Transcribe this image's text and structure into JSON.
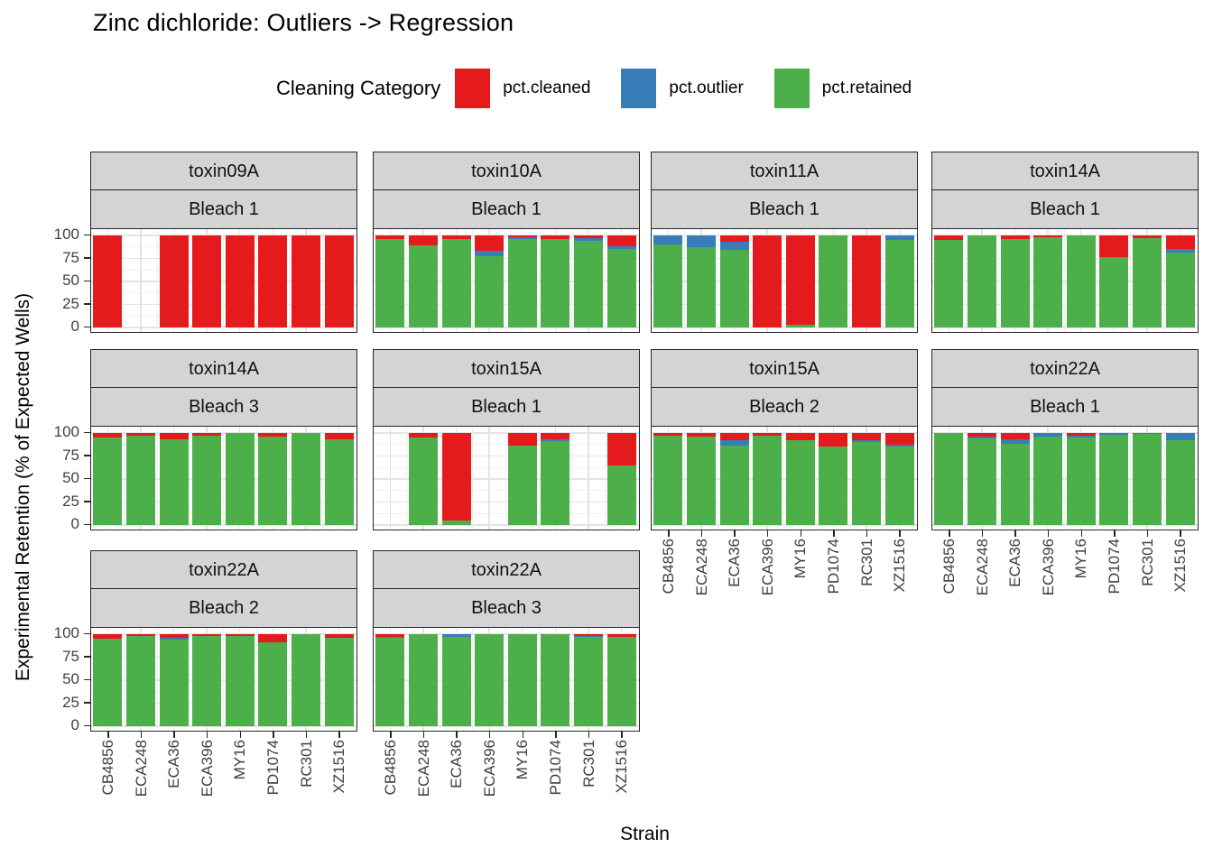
{
  "title": "Zinc dichloride: Outliers -> Regression",
  "legend": {
    "title": "Cleaning Category",
    "items": [
      {
        "label": "pct.cleaned",
        "key": "cleaned",
        "color": "#E41A1C"
      },
      {
        "label": "pct.outlier",
        "key": "outlier",
        "color": "#377EB8"
      },
      {
        "label": "pct.retained",
        "key": "retained",
        "color": "#4DAF4A"
      }
    ]
  },
  "axes": {
    "y_title": "Experimental Retention (% of Expected Wells)",
    "x_title": "Strain",
    "y_ticks": [
      100,
      75,
      50,
      25,
      0
    ],
    "strains": [
      "CB4856",
      "ECA248",
      "ECA36",
      "ECA396",
      "MY16",
      "PD1074",
      "RC301",
      "XZ1516"
    ]
  },
  "colors": {
    "cleaned": "#E41A1C",
    "outlier": "#377EB8",
    "retained": "#4DAF4A",
    "strip_bg": "#D4D4D4",
    "panel_border": "#262626",
    "grid_major": "#E3E3E3",
    "grid_minor": "#F0F0F0",
    "tick_text": "#404040"
  },
  "chart_data": {
    "type": "bar",
    "stacked": true,
    "ylim": [
      0,
      100
    ],
    "grid": true,
    "legend_position": "top",
    "categories": [
      "CB4856",
      "ECA248",
      "ECA36",
      "ECA396",
      "MY16",
      "PD1074",
      "RC301",
      "XZ1516"
    ],
    "stack_order_bottom_to_top": [
      "retained",
      "outlier",
      "cleaned"
    ],
    "facets": [
      {
        "toxin": "toxin09A",
        "bleach": "Bleach 1",
        "show_x_labels": false,
        "bars": [
          {
            "cleaned": 100,
            "outlier": 0,
            "retained": 0
          },
          null,
          {
            "cleaned": 100,
            "outlier": 0,
            "retained": 0
          },
          {
            "cleaned": 100,
            "outlier": 0,
            "retained": 0
          },
          {
            "cleaned": 100,
            "outlier": 0,
            "retained": 0
          },
          {
            "cleaned": 100,
            "outlier": 0,
            "retained": 0
          },
          {
            "cleaned": 100,
            "outlier": 0,
            "retained": 0
          },
          {
            "cleaned": 100,
            "outlier": 0,
            "retained": 0
          }
        ]
      },
      {
        "toxin": "toxin10A",
        "bleach": "Bleach 1",
        "show_x_labels": false,
        "bars": [
          {
            "cleaned": 4,
            "outlier": 0,
            "retained": 96
          },
          {
            "cleaned": 11,
            "outlier": 0,
            "retained": 89
          },
          {
            "cleaned": 4,
            "outlier": 0,
            "retained": 96
          },
          {
            "cleaned": 17,
            "outlier": 6,
            "retained": 77
          },
          {
            "cleaned": 2,
            "outlier": 2,
            "retained": 96
          },
          {
            "cleaned": 4,
            "outlier": 0,
            "retained": 96
          },
          {
            "cleaned": 3,
            "outlier": 3,
            "retained": 94
          },
          {
            "cleaned": 12,
            "outlier": 3,
            "retained": 85
          }
        ]
      },
      {
        "toxin": "toxin11A",
        "bleach": "Bleach 1",
        "show_x_labels": false,
        "bars": [
          {
            "cleaned": 0,
            "outlier": 10,
            "retained": 90
          },
          {
            "cleaned": 0,
            "outlier": 13,
            "retained": 87
          },
          {
            "cleaned": 7,
            "outlier": 9,
            "retained": 84
          },
          {
            "cleaned": 100,
            "outlier": 0,
            "retained": 0
          },
          {
            "cleaned": 97,
            "outlier": 0,
            "retained": 3
          },
          {
            "cleaned": 0,
            "outlier": 0,
            "retained": 100
          },
          {
            "cleaned": 100,
            "outlier": 0,
            "retained": 0
          },
          {
            "cleaned": 0,
            "outlier": 5,
            "retained": 95
          }
        ]
      },
      {
        "toxin": "toxin14A",
        "bleach": "Bleach 1",
        "show_x_labels": false,
        "bars": [
          {
            "cleaned": 5,
            "outlier": 0,
            "retained": 95
          },
          {
            "cleaned": 0,
            "outlier": 0,
            "retained": 100
          },
          {
            "cleaned": 4,
            "outlier": 0,
            "retained": 96
          },
          {
            "cleaned": 2,
            "outlier": 0,
            "retained": 98
          },
          {
            "cleaned": 0,
            "outlier": 0,
            "retained": 100
          },
          {
            "cleaned": 24,
            "outlier": 0,
            "retained": 76
          },
          {
            "cleaned": 3,
            "outlier": 0,
            "retained": 97
          },
          {
            "cleaned": 15,
            "outlier": 4,
            "retained": 81
          }
        ]
      },
      {
        "toxin": "toxin14A",
        "bleach": "Bleach 3",
        "show_x_labels": false,
        "bars": [
          {
            "cleaned": 5,
            "outlier": 0,
            "retained": 95
          },
          {
            "cleaned": 3,
            "outlier": 0,
            "retained": 97
          },
          {
            "cleaned": 7,
            "outlier": 0,
            "retained": 93
          },
          {
            "cleaned": 3,
            "outlier": 0,
            "retained": 97
          },
          {
            "cleaned": 0,
            "outlier": 0,
            "retained": 100
          },
          {
            "cleaned": 4,
            "outlier": 0,
            "retained": 96
          },
          {
            "cleaned": 0,
            "outlier": 0,
            "retained": 100
          },
          {
            "cleaned": 7,
            "outlier": 0,
            "retained": 93
          }
        ]
      },
      {
        "toxin": "toxin15A",
        "bleach": "Bleach 1",
        "show_x_labels": false,
        "bars": [
          null,
          {
            "cleaned": 5,
            "outlier": 0,
            "retained": 95
          },
          {
            "cleaned": 95,
            "outlier": 0,
            "retained": 5
          },
          null,
          {
            "cleaned": 14,
            "outlier": 0,
            "retained": 86
          },
          {
            "cleaned": 7,
            "outlier": 2,
            "retained": 91
          },
          null,
          {
            "cleaned": 35,
            "outlier": 0,
            "retained": 65
          }
        ]
      },
      {
        "toxin": "toxin15A",
        "bleach": "Bleach 2",
        "show_x_labels": true,
        "bars": [
          {
            "cleaned": 3,
            "outlier": 0,
            "retained": 97
          },
          {
            "cleaned": 4,
            "outlier": 0,
            "retained": 96
          },
          {
            "cleaned": 8,
            "outlier": 6,
            "retained": 86
          },
          {
            "cleaned": 3,
            "outlier": 0,
            "retained": 97
          },
          {
            "cleaned": 8,
            "outlier": 0,
            "retained": 92
          },
          {
            "cleaned": 15,
            "outlier": 0,
            "retained": 85
          },
          {
            "cleaned": 8,
            "outlier": 2,
            "retained": 90
          },
          {
            "cleaned": 13,
            "outlier": 2,
            "retained": 85
          }
        ]
      },
      {
        "toxin": "toxin22A",
        "bleach": "Bleach 1",
        "show_x_labels": true,
        "bars": [
          {
            "cleaned": 0,
            "outlier": 0,
            "retained": 100
          },
          {
            "cleaned": 4,
            "outlier": 2,
            "retained": 94
          },
          {
            "cleaned": 7,
            "outlier": 5,
            "retained": 88
          },
          {
            "cleaned": 0,
            "outlier": 4,
            "retained": 96
          },
          {
            "cleaned": 3,
            "outlier": 2,
            "retained": 95
          },
          {
            "cleaned": 0,
            "outlier": 2,
            "retained": 98
          },
          {
            "cleaned": 0,
            "outlier": 1,
            "retained": 99
          },
          {
            "cleaned": 0,
            "outlier": 8,
            "retained": 92
          }
        ]
      },
      {
        "toxin": "toxin22A",
        "bleach": "Bleach 2",
        "show_x_labels": true,
        "bars": [
          {
            "cleaned": 5,
            "outlier": 0,
            "retained": 95
          },
          {
            "cleaned": 2,
            "outlier": 0,
            "retained": 98
          },
          {
            "cleaned": 4,
            "outlier": 2,
            "retained": 94
          },
          {
            "cleaned": 2,
            "outlier": 0,
            "retained": 98
          },
          {
            "cleaned": 2,
            "outlier": 0,
            "retained": 98
          },
          {
            "cleaned": 9,
            "outlier": 0,
            "retained": 91
          },
          {
            "cleaned": 0,
            "outlier": 0,
            "retained": 100
          },
          {
            "cleaned": 4,
            "outlier": 0,
            "retained": 96
          }
        ]
      },
      {
        "toxin": "toxin22A",
        "bleach": "Bleach 3",
        "show_x_labels": true,
        "bars": [
          {
            "cleaned": 3,
            "outlier": 1,
            "retained": 96
          },
          {
            "cleaned": 0,
            "outlier": 0,
            "retained": 100
          },
          {
            "cleaned": 0,
            "outlier": 3,
            "retained": 97
          },
          {
            "cleaned": 0,
            "outlier": 0,
            "retained": 100
          },
          {
            "cleaned": 0,
            "outlier": 0,
            "retained": 100
          },
          {
            "cleaned": 0,
            "outlier": 0,
            "retained": 100
          },
          {
            "cleaned": 2,
            "outlier": 1,
            "retained": 97
          },
          {
            "cleaned": 3,
            "outlier": 0,
            "retained": 97
          }
        ]
      }
    ]
  }
}
